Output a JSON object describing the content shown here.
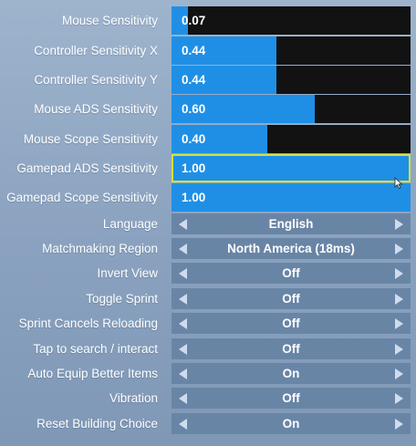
{
  "sliders": [
    {
      "label": "Mouse Sensitivity",
      "value": "0.07",
      "fill": 0.07
    },
    {
      "label": "Controller Sensitivity X",
      "value": "0.44",
      "fill": 0.44
    },
    {
      "label": "Controller Sensitivity Y",
      "value": "0.44",
      "fill": 0.44
    },
    {
      "label": "Mouse ADS Sensitivity",
      "value": "0.60",
      "fill": 0.6
    },
    {
      "label": "Mouse Scope Sensitivity",
      "value": "0.40",
      "fill": 0.4
    },
    {
      "label": "Gamepad ADS Sensitivity",
      "value": "1.00",
      "fill": 1.0
    },
    {
      "label": "Gamepad Scope Sensitivity",
      "value": "1.00",
      "fill": 1.0
    }
  ],
  "selectors": [
    {
      "label": "Language",
      "value": "English"
    },
    {
      "label": "Matchmaking Region",
      "value": "North America (18ms)"
    },
    {
      "label": "Invert View",
      "value": "Off"
    },
    {
      "label": "Toggle Sprint",
      "value": "Off"
    },
    {
      "label": "Sprint Cancels Reloading",
      "value": "Off"
    },
    {
      "label": "Tap to search / interact",
      "value": "Off"
    },
    {
      "label": "Auto Equip Better Items",
      "value": "On"
    },
    {
      "label": "Vibration",
      "value": "Off"
    },
    {
      "label": "Reset Building Choice",
      "value": "On"
    }
  ],
  "colors": {
    "slider_fill": "#1f8fe6",
    "slider_track": "#121212",
    "focus_border": "#d4e233",
    "selector_bg": "#6985a6"
  },
  "icons": {
    "selector_left": "arrow-left-icon",
    "selector_right": "arrow-right-icon",
    "cursor": "mouse-cursor-icon"
  }
}
